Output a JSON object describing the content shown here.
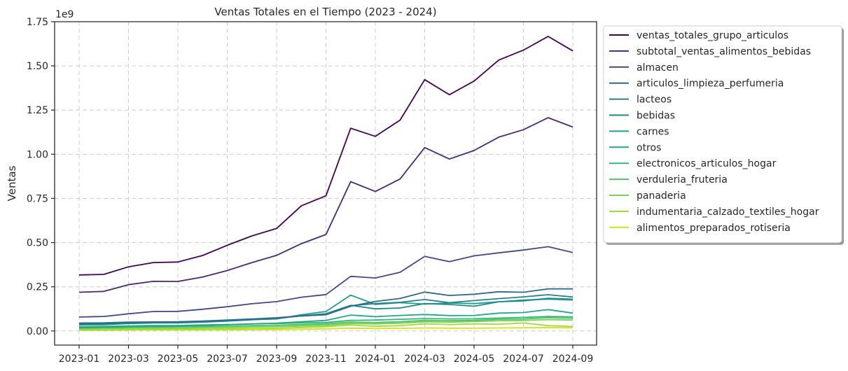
{
  "chart_data": {
    "type": "line",
    "title": "Ventas Totales en el Tiempo (2023 - 2024)",
    "xlabel": "",
    "ylabel": "Ventas",
    "y_offset_label": "1e9",
    "x": [
      "2023-01",
      "2023-02",
      "2023-03",
      "2023-04",
      "2023-05",
      "2023-06",
      "2023-07",
      "2023-08",
      "2023-09",
      "2023-10",
      "2023-11",
      "2023-12",
      "2024-01",
      "2024-02",
      "2024-03",
      "2024-04",
      "2024-05",
      "2024-06",
      "2024-07",
      "2024-08",
      "2024-09"
    ],
    "x_tick_labels": [
      "2023-01",
      "2023-03",
      "2023-05",
      "2023-07",
      "2023-09",
      "2023-11",
      "2024-01",
      "2024-03",
      "2024-05",
      "2024-07",
      "2024-09"
    ],
    "y_tick_labels": [
      "0.00",
      "0.25",
      "0.50",
      "0.75",
      "1.00",
      "1.25",
      "1.50",
      "1.75"
    ],
    "ylim": [
      -0.08,
      1.75
    ],
    "grid": true,
    "legend_position": "outside-right",
    "series": [
      {
        "name": "ventas_totales_grupo_articulos",
        "color": "#440154",
        "values": [
          0.317,
          0.32,
          0.363,
          0.387,
          0.39,
          0.427,
          0.485,
          0.538,
          0.58,
          0.708,
          0.765,
          1.147,
          1.101,
          1.193,
          1.422,
          1.337,
          1.414,
          1.533,
          1.589,
          1.667,
          1.585
        ]
      },
      {
        "name": "subtotal_ventas_alimentos_bebidas",
        "color": "#482878",
        "values": [
          0.219,
          0.224,
          0.262,
          0.281,
          0.28,
          0.305,
          0.342,
          0.387,
          0.428,
          0.494,
          0.546,
          0.845,
          0.789,
          0.86,
          1.038,
          0.973,
          1.021,
          1.097,
          1.139,
          1.207,
          1.154
        ]
      },
      {
        "name": "almacen",
        "color": "#3e4989",
        "values": [
          0.079,
          0.082,
          0.097,
          0.11,
          0.111,
          0.123,
          0.137,
          0.154,
          0.166,
          0.191,
          0.206,
          0.309,
          0.3,
          0.332,
          0.422,
          0.392,
          0.425,
          0.442,
          0.458,
          0.477,
          0.444
        ]
      },
      {
        "name": "articulos_limpieza_perfumeria",
        "color": "#31688e",
        "values": [
          0.04,
          0.042,
          0.048,
          0.05,
          0.051,
          0.055,
          0.06,
          0.066,
          0.072,
          0.085,
          0.092,
          0.14,
          0.167,
          0.184,
          0.22,
          0.201,
          0.208,
          0.222,
          0.219,
          0.238,
          0.238
        ]
      },
      {
        "name": "lacteos",
        "color": "#26828e",
        "values": [
          0.045,
          0.046,
          0.05,
          0.051,
          0.052,
          0.056,
          0.062,
          0.068,
          0.075,
          0.085,
          0.092,
          0.143,
          0.155,
          0.162,
          0.178,
          0.16,
          0.172,
          0.183,
          0.193,
          0.205,
          0.192
        ]
      },
      {
        "name": "bebidas",
        "color": "#1f8a8c",
        "values": [
          0.035,
          0.036,
          0.042,
          0.045,
          0.046,
          0.05,
          0.056,
          0.063,
          0.07,
          0.086,
          0.098,
          0.145,
          0.125,
          0.13,
          0.155,
          0.15,
          0.14,
          0.165,
          0.17,
          0.185,
          0.18
        ]
      },
      {
        "name": "carnes",
        "color": "#1f9e89",
        "values": [
          0.038,
          0.04,
          0.046,
          0.048,
          0.049,
          0.052,
          0.058,
          0.064,
          0.068,
          0.092,
          0.11,
          0.203,
          0.15,
          0.16,
          0.152,
          0.158,
          0.155,
          0.165,
          0.175,
          0.18,
          0.175
        ]
      },
      {
        "name": "otros",
        "color": "#22a884",
        "values": [
          0.02,
          0.021,
          0.025,
          0.027,
          0.028,
          0.031,
          0.035,
          0.04,
          0.044,
          0.052,
          0.06,
          0.09,
          0.081,
          0.088,
          0.093,
          0.087,
          0.088,
          0.101,
          0.104,
          0.121,
          0.101
        ]
      },
      {
        "name": "electronicos_articulos_hogar",
        "color": "#35b779",
        "values": [
          0.025,
          0.026,
          0.029,
          0.031,
          0.031,
          0.034,
          0.036,
          0.04,
          0.042,
          0.045,
          0.048,
          0.06,
          0.062,
          0.066,
          0.07,
          0.068,
          0.069,
          0.073,
          0.077,
          0.082,
          0.08
        ]
      },
      {
        "name": "verduleria_fruteria",
        "color": "#4ec36b",
        "values": [
          0.018,
          0.019,
          0.021,
          0.022,
          0.023,
          0.025,
          0.027,
          0.03,
          0.032,
          0.036,
          0.04,
          0.05,
          0.048,
          0.052,
          0.06,
          0.058,
          0.06,
          0.066,
          0.068,
          0.075,
          0.072
        ]
      },
      {
        "name": "panaderia",
        "color": "#7ad151",
        "values": [
          0.012,
          0.013,
          0.015,
          0.016,
          0.016,
          0.018,
          0.02,
          0.022,
          0.024,
          0.028,
          0.032,
          0.042,
          0.04,
          0.044,
          0.052,
          0.05,
          0.054,
          0.058,
          0.06,
          0.064,
          0.062
        ]
      },
      {
        "name": "indumentaria_calzado_textiles_hogar",
        "color": "#a5db36",
        "values": [
          0.006,
          0.006,
          0.008,
          0.009,
          0.009,
          0.01,
          0.012,
          0.013,
          0.015,
          0.02,
          0.024,
          0.034,
          0.026,
          0.03,
          0.04,
          0.036,
          0.04,
          0.038,
          0.045,
          0.03,
          0.025
        ]
      },
      {
        "name": "alimentos_preparados_rotiseria",
        "color": "#d2e21b",
        "values": [
          0.004,
          0.004,
          0.005,
          0.005,
          0.005,
          0.006,
          0.006,
          0.007,
          0.008,
          0.01,
          0.012,
          0.016,
          0.014,
          0.015,
          0.017,
          0.016,
          0.016,
          0.017,
          0.018,
          0.019,
          0.018
        ]
      }
    ]
  }
}
